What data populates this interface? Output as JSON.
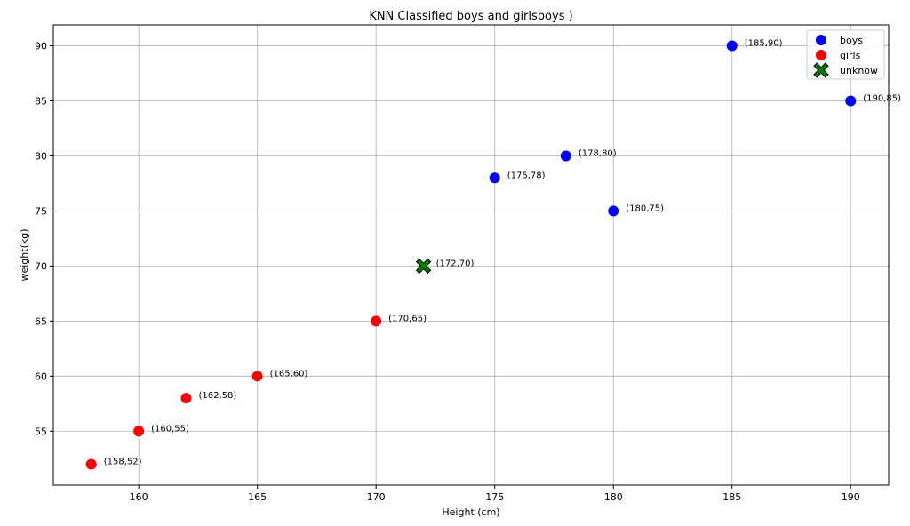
{
  "chart_data": {
    "type": "scatter",
    "title": "KNN Classified boys and girlsboys )",
    "xlabel": "Height (cm)",
    "ylabel": "weight(kg)",
    "xlim": [
      156.4,
      191.6
    ],
    "ylim": [
      50.1,
      91.9
    ],
    "xticks": [
      160,
      165,
      170,
      175,
      180,
      185,
      190
    ],
    "yticks": [
      55,
      60,
      65,
      70,
      75,
      80,
      85,
      90
    ],
    "grid": true,
    "legend_position": "top-right",
    "series": [
      {
        "name": "boys",
        "color": "#0000ff",
        "marker": "circle",
        "points": [
          {
            "x": 175,
            "y": 78,
            "label": "(175,78)"
          },
          {
            "x": 178,
            "y": 80,
            "label": "(178,80)"
          },
          {
            "x": 180,
            "y": 75,
            "label": "(180,75)"
          },
          {
            "x": 185,
            "y": 90,
            "label": "(185,90)"
          },
          {
            "x": 190,
            "y": 85,
            "label": "(190,85)"
          }
        ]
      },
      {
        "name": "girls",
        "color": "#ff0000",
        "marker": "circle",
        "points": [
          {
            "x": 158,
            "y": 52,
            "label": "(158,52)"
          },
          {
            "x": 160,
            "y": 55,
            "label": "(160,55)"
          },
          {
            "x": 162,
            "y": 58,
            "label": "(162,58)"
          },
          {
            "x": 165,
            "y": 60,
            "label": "(165,60)"
          },
          {
            "x": 170,
            "y": 65,
            "label": "(170,65)"
          }
        ]
      },
      {
        "name": "unknow",
        "color": "#008000",
        "marker": "x",
        "points": [
          {
            "x": 172,
            "y": 70,
            "label": "(172,70)"
          }
        ]
      }
    ]
  }
}
